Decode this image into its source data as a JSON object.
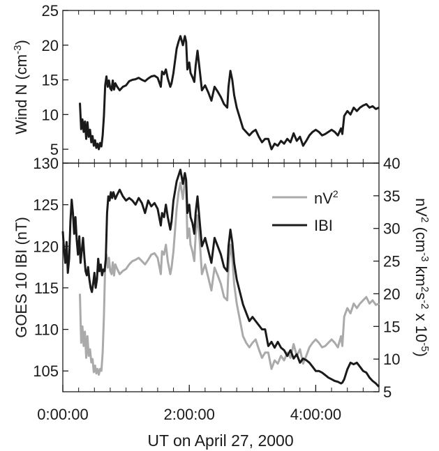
{
  "chart_data": [
    {
      "type": "line",
      "ylabel": "Wind N (cm",
      "ylabel_sup": "-3",
      "ylabel_end": ")",
      "ylim": [
        3,
        25
      ],
      "yticks": [
        5,
        10,
        15,
        20,
        25
      ],
      "xlim": [
        0,
        5
      ],
      "series": [
        {
          "color": "#1a1a1a",
          "x": [
            0.27,
            0.29,
            0.31,
            0.33,
            0.35,
            0.37,
            0.39,
            0.41,
            0.43,
            0.45,
            0.47,
            0.49,
            0.51,
            0.53,
            0.55,
            0.57,
            0.59,
            0.61,
            0.63,
            0.65,
            0.67,
            0.69,
            0.71,
            0.73,
            0.75,
            0.77,
            0.79,
            0.81,
            0.83,
            0.86,
            0.9,
            0.95,
            1.0,
            1.05,
            1.1,
            1.15,
            1.2,
            1.25,
            1.3,
            1.35,
            1.4,
            1.45,
            1.5,
            1.55,
            1.57,
            1.6,
            1.63,
            1.66,
            1.7,
            1.72,
            1.75,
            1.8,
            1.83,
            1.86,
            1.9,
            1.93,
            1.95,
            1.97,
            2.0,
            2.02,
            2.05,
            2.08,
            2.1,
            2.13,
            2.17,
            2.2,
            2.25,
            2.3,
            2.35,
            2.4,
            2.45,
            2.5,
            2.55,
            2.6,
            2.62,
            2.65,
            2.68,
            2.71,
            2.75,
            2.8,
            2.85,
            2.9,
            2.95,
            3.0,
            3.05,
            3.1,
            3.15,
            3.2,
            3.25,
            3.3,
            3.35,
            3.4,
            3.45,
            3.5,
            3.55,
            3.6,
            3.65,
            3.7,
            3.75,
            3.8,
            3.85,
            3.9,
            3.95,
            4.0,
            4.05,
            4.1,
            4.15,
            4.2,
            4.25,
            4.3,
            4.35,
            4.4,
            4.42,
            4.45,
            4.5,
            4.55,
            4.6,
            4.65,
            4.7,
            4.75,
            4.8,
            4.85,
            4.9,
            4.95,
            5.0
          ],
          "y": [
            11.7,
            7.9,
            9.3,
            7.5,
            9.0,
            6.5,
            8.9,
            6.8,
            7.8,
            6.0,
            6.9,
            5.5,
            6.3,
            5.2,
            5.8,
            5.0,
            5.9,
            5.4,
            7.0,
            9.8,
            14.2,
            15.5,
            14.0,
            14.9,
            13.8,
            13.5,
            14.9,
            13.6,
            14.5,
            14.0,
            13.5,
            14.0,
            14.2,
            14.8,
            15.0,
            15.1,
            15.3,
            15.0,
            14.8,
            15.2,
            15.5,
            15.6,
            15.3,
            14.0,
            16.2,
            15.8,
            16.5,
            15.2,
            14.0,
            14.5,
            16.0,
            19.5,
            20.5,
            21.3,
            20.0,
            21.3,
            20.5,
            16.5,
            17.5,
            16.0,
            15.4,
            14.7,
            17.0,
            19.2,
            16.0,
            13.5,
            14.2,
            13.2,
            12.0,
            14.0,
            13.3,
            12.5,
            11.5,
            11.0,
            14.0,
            16.3,
            15.0,
            12.8,
            11.0,
            9.5,
            8.0,
            7.5,
            7.0,
            7.5,
            7.8,
            6.8,
            6.0,
            6.5,
            6.5,
            5.0,
            5.8,
            5.5,
            6.2,
            5.8,
            6.5,
            6.0,
            7.3,
            6.2,
            6.8,
            5.5,
            6.2,
            7.0,
            7.5,
            7.8,
            7.5,
            7.0,
            7.2,
            7.5,
            7.8,
            7.5,
            7.0,
            8.0,
            7.2,
            9.8,
            10.5,
            10.0,
            11.0,
            10.5,
            11.0,
            11.3,
            11.5,
            11.0,
            11.2,
            10.8,
            11.0
          ]
        }
      ]
    },
    {
      "type": "line",
      "ylabel_left": "GOES 10 IBI (nT)",
      "ylabel_right_a": "nV",
      "ylabel_right_sup_a": "2",
      "ylabel_right_b": " (cm",
      "ylabel_right_sup_b": "-3",
      "ylabel_right_c": " km",
      "ylabel_right_sup_c": "2",
      "ylabel_right_d": "s",
      "ylabel_right_sup_d": "-2",
      "ylabel_right_e": " x 10",
      "ylabel_right_sup_e": "-5",
      "ylabel_right_f": ")",
      "ylim_left": [
        102.5,
        130
      ],
      "yticks_left": [
        105,
        110,
        115,
        120,
        125,
        130
      ],
      "ylim_right": [
        5,
        40
      ],
      "yticks_right": [
        5,
        10,
        15,
        20,
        25,
        30,
        35,
        40
      ],
      "xlim": [
        0,
        5
      ],
      "xticks": [
        "0:00:00",
        "2:00:00",
        "4:00:00"
      ],
      "xtick_values": [
        0,
        2,
        4
      ],
      "xlabel": "UT on April 27, 2000",
      "grid": "vertical minor ticks every 0.25 h",
      "legend_position": "top-right",
      "series": [
        {
          "name": "nV",
          "name_sup": "2",
          "axis": "right",
          "color": "#aaaaaa",
          "x": [
            0.27,
            0.29,
            0.31,
            0.33,
            0.35,
            0.37,
            0.39,
            0.41,
            0.43,
            0.45,
            0.47,
            0.49,
            0.51,
            0.53,
            0.55,
            0.57,
            0.59,
            0.61,
            0.63,
            0.65,
            0.67,
            0.69,
            0.71,
            0.73,
            0.75,
            0.77,
            0.79,
            0.81,
            0.83,
            0.86,
            0.9,
            0.95,
            1.0,
            1.05,
            1.1,
            1.15,
            1.2,
            1.25,
            1.3,
            1.35,
            1.4,
            1.45,
            1.5,
            1.55,
            1.57,
            1.6,
            1.63,
            1.66,
            1.7,
            1.72,
            1.75,
            1.8,
            1.83,
            1.86,
            1.9,
            1.93,
            1.95,
            1.97,
            2.0,
            2.02,
            2.05,
            2.08,
            2.1,
            2.13,
            2.17,
            2.2,
            2.25,
            2.3,
            2.35,
            2.4,
            2.45,
            2.5,
            2.55,
            2.6,
            2.62,
            2.65,
            2.68,
            2.71,
            2.75,
            2.8,
            2.85,
            2.9,
            2.95,
            3.0,
            3.05,
            3.1,
            3.15,
            3.2,
            3.25,
            3.3,
            3.35,
            3.4,
            3.45,
            3.5,
            3.55,
            3.6,
            3.65,
            3.7,
            3.75,
            3.8,
            3.85,
            3.9,
            3.95,
            4.0,
            4.05,
            4.1,
            4.15,
            4.2,
            4.25,
            4.3,
            4.35,
            4.4,
            4.42,
            4.45,
            4.5,
            4.55,
            4.6,
            4.65,
            4.7,
            4.75,
            4.8,
            4.85,
            4.9,
            4.95,
            5.0
          ],
          "y": [
            20.0,
            12.5,
            15.0,
            12.0,
            14.2,
            10.2,
            13.5,
            10.5,
            11.5,
            9.5,
            10.0,
            8.0,
            9.0,
            7.8,
            8.5,
            7.6,
            8.5,
            8.2,
            11.0,
            16.5,
            24.5,
            26.0,
            24.0,
            25.5,
            23.5,
            23.0,
            24.8,
            22.8,
            24.5,
            23.8,
            23.0,
            23.5,
            23.8,
            24.5,
            25.0,
            25.2,
            25.5,
            25.0,
            24.5,
            25.2,
            26.0,
            26.2,
            25.5,
            23.0,
            26.5,
            26.0,
            27.5,
            25.0,
            23.0,
            24.0,
            26.5,
            33.0,
            35.5,
            37.0,
            34.5,
            37.5,
            36.5,
            28.5,
            30.0,
            27.5,
            26.5,
            25.0,
            29.0,
            32.0,
            27.5,
            23.0,
            24.5,
            22.5,
            20.5,
            24.0,
            22.8,
            21.5,
            19.5,
            19.0,
            24.0,
            27.5,
            25.5,
            21.5,
            18.5,
            16.0,
            13.5,
            12.5,
            11.8,
            12.5,
            13.0,
            11.5,
            10.2,
            11.0,
            11.0,
            8.5,
            9.8,
            9.3,
            10.5,
            9.8,
            11.0,
            10.2,
            12.3,
            10.5,
            11.5,
            9.3,
            10.5,
            11.8,
            12.5,
            13.0,
            12.5,
            11.8,
            12.0,
            12.5,
            13.0,
            12.5,
            11.8,
            13.5,
            12.0,
            16.5,
            17.8,
            17.0,
            18.5,
            17.8,
            18.5,
            19.0,
            19.5,
            18.5,
            19.0,
            18.3,
            18.5
          ]
        },
        {
          "name": "IBI",
          "axis": "left",
          "color": "#1a1a1a",
          "x": [
            0.0,
            0.02,
            0.04,
            0.06,
            0.08,
            0.1,
            0.12,
            0.14,
            0.16,
            0.18,
            0.2,
            0.22,
            0.24,
            0.26,
            0.28,
            0.3,
            0.32,
            0.34,
            0.36,
            0.38,
            0.4,
            0.42,
            0.44,
            0.46,
            0.48,
            0.5,
            0.52,
            0.54,
            0.56,
            0.58,
            0.6,
            0.62,
            0.64,
            0.66,
            0.68,
            0.7,
            0.72,
            0.74,
            0.76,
            0.78,
            0.8,
            0.83,
            0.86,
            0.9,
            0.95,
            1.0,
            1.05,
            1.1,
            1.15,
            1.2,
            1.25,
            1.3,
            1.35,
            1.4,
            1.45,
            1.5,
            1.55,
            1.57,
            1.6,
            1.63,
            1.66,
            1.7,
            1.72,
            1.75,
            1.8,
            1.83,
            1.86,
            1.9,
            1.93,
            1.95,
            1.97,
            2.0,
            2.02,
            2.05,
            2.08,
            2.1,
            2.13,
            2.17,
            2.2,
            2.25,
            2.3,
            2.35,
            2.4,
            2.45,
            2.5,
            2.55,
            2.6,
            2.62,
            2.65,
            2.68,
            2.71,
            2.75,
            2.8,
            2.85,
            2.9,
            2.95,
            3.0,
            3.05,
            3.1,
            3.15,
            3.2,
            3.25,
            3.3,
            3.35,
            3.4,
            3.45,
            3.5,
            3.55,
            3.6,
            3.65,
            3.7,
            3.75,
            3.8,
            3.85,
            3.9,
            3.95,
            4.0,
            4.05,
            4.1,
            4.15,
            4.2,
            4.25,
            4.3,
            4.35,
            4.4,
            4.42,
            4.45,
            4.5,
            4.55,
            4.6,
            4.65,
            4.7,
            4.75,
            4.8,
            4.85,
            4.9,
            4.95,
            5.0
          ],
          "y": [
            121.8,
            119.5,
            118.0,
            120.5,
            116.8,
            118.5,
            123.0,
            125.6,
            124.0,
            121.5,
            123.5,
            120.8,
            119.0,
            121.2,
            118.0,
            119.5,
            121.0,
            118.8,
            117.0,
            116.5,
            117.5,
            116.0,
            115.0,
            114.5,
            115.5,
            116.8,
            115.0,
            116.0,
            118.5,
            117.0,
            117.8,
            116.5,
            117.2,
            117.0,
            118.5,
            124.0,
            126.0,
            125.5,
            126.5,
            125.8,
            126.5,
            125.7,
            126.2,
            126.8,
            126.0,
            125.5,
            125.8,
            125.5,
            125.0,
            125.8,
            125.2,
            124.0,
            125.5,
            124.8,
            125.2,
            124.5,
            122.5,
            124.0,
            123.5,
            125.0,
            123.5,
            122.0,
            123.0,
            125.5,
            127.8,
            128.5,
            129.2,
            127.5,
            128.8,
            128.0,
            124.0,
            125.0,
            123.5,
            122.8,
            121.5,
            124.0,
            126.0,
            122.5,
            120.0,
            121.0,
            119.5,
            118.0,
            121.0,
            120.0,
            119.0,
            117.5,
            117.0,
            120.0,
            122.0,
            120.5,
            118.0,
            116.0,
            114.5,
            113.0,
            112.0,
            111.0,
            111.5,
            111.0,
            110.5,
            110.0,
            110.0,
            108.0,
            108.5,
            107.8,
            108.5,
            107.8,
            107.5,
            106.8,
            107.5,
            106.5,
            107.0,
            106.0,
            106.5,
            106.3,
            106.0,
            105.5,
            105.0,
            105.0,
            104.8,
            104.5,
            104.2,
            104.0,
            103.8,
            103.7,
            103.5,
            103.6,
            104.0,
            105.2,
            106.0,
            105.8,
            106.0,
            105.5,
            105.0,
            104.8,
            104.2,
            103.8,
            103.5,
            103.1
          ]
        }
      ]
    }
  ]
}
